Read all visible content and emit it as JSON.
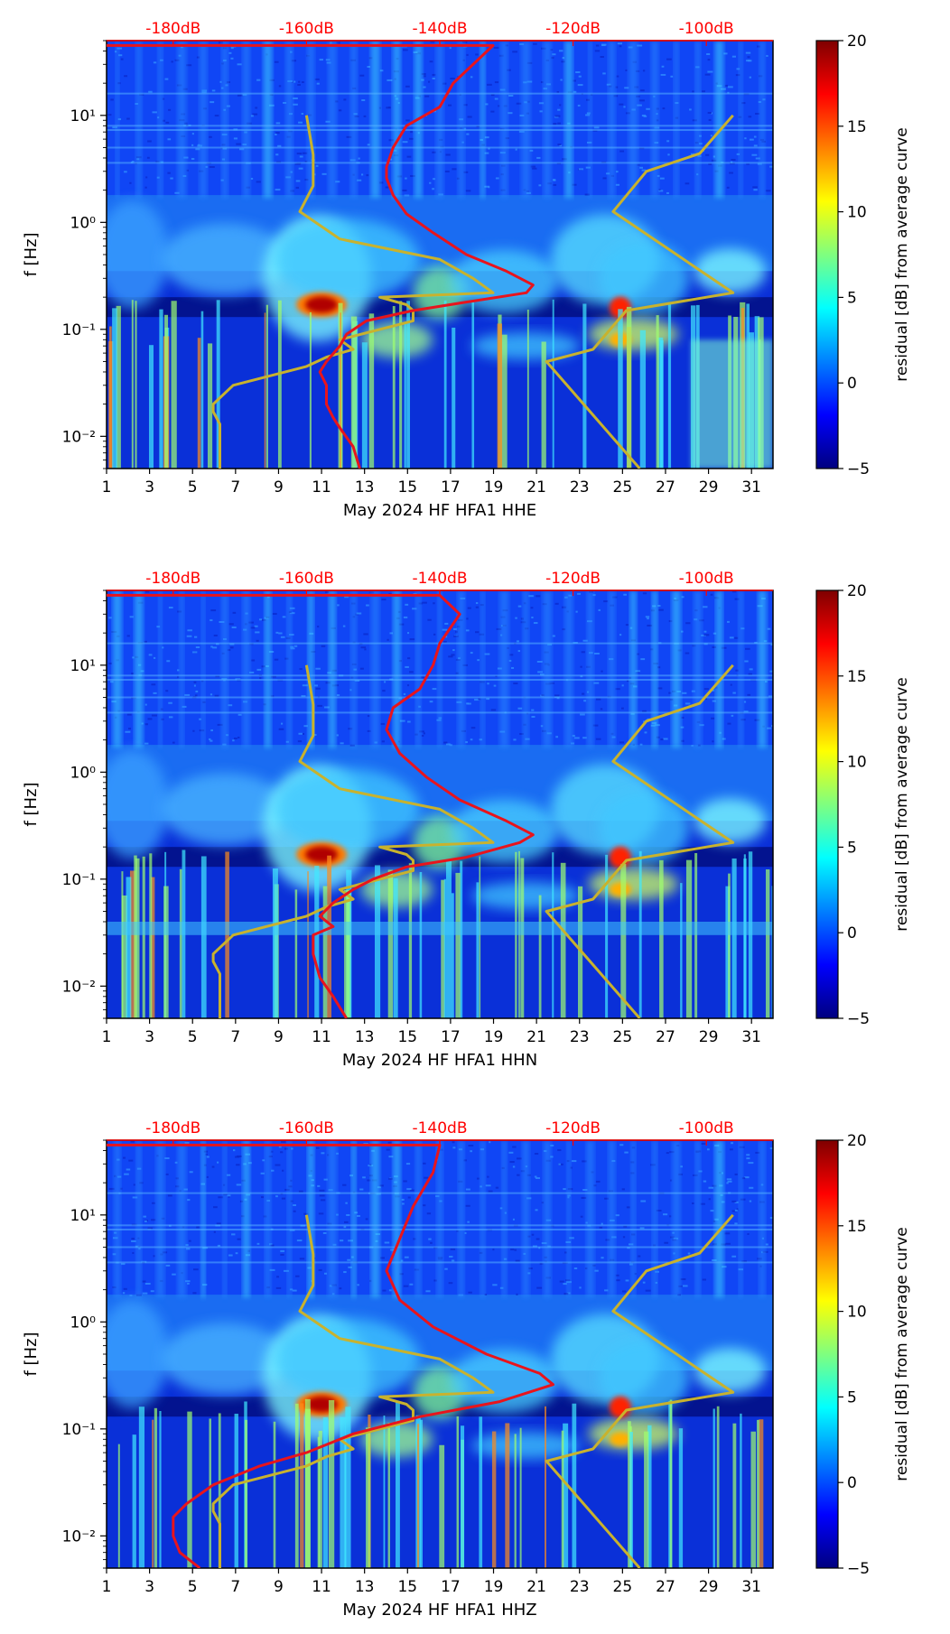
{
  "colors": {
    "colormap": [
      "#00007f",
      "#0000ff",
      "#007fff",
      "#00ffff",
      "#7fff7f",
      "#ffff00",
      "#ff7f00",
      "#ff0000",
      "#7f0000"
    ],
    "noise_model": "#c8b22e",
    "psd_curve": "#e8141c",
    "top_axis": "#ff0000",
    "axis": "#000000"
  },
  "colorbar": {
    "label": "residual [dB] from average curve",
    "ticks": [
      "20",
      "15",
      "10",
      "5",
      "0",
      "−5"
    ],
    "range": [
      -5,
      20
    ]
  },
  "chart_data": [
    {
      "type": "heatmap",
      "xlabel": "May 2024 HF HFA1  HHE",
      "ylabel": "f [Hz]",
      "x_ticks": [
        "1",
        "3",
        "5",
        "7",
        "9",
        "11",
        "13",
        "15",
        "17",
        "19",
        "21",
        "23",
        "25",
        "27",
        "29",
        "31"
      ],
      "x_range": [
        1,
        32
      ],
      "y_ticks": [
        "10¹",
        "10⁰",
        "10⁻¹",
        "10⁻²"
      ],
      "y_range": [
        0.005,
        50
      ],
      "y_scale": "log",
      "top_axis_ticks": [
        "-180dB",
        "-160dB",
        "-140dB",
        "-120dB",
        "-100dB"
      ],
      "top_axis_range": [
        -190,
        -90
      ],
      "series": [
        {
          "values": [
            [
              -173,
              0.005
            ],
            [
              -173,
              0.013
            ],
            [
              -174,
              0.017
            ],
            [
              -174,
              0.02
            ],
            [
              -171,
              0.03
            ],
            [
              -160,
              0.045
            ],
            [
              -157,
              0.055
            ],
            [
              -153,
              0.065
            ],
            [
              -155,
              0.08
            ],
            [
              -144,
              0.12
            ],
            [
              -144,
              0.15
            ],
            [
              -145,
              0.17
            ],
            [
              -149,
              0.2
            ],
            [
              -132,
              0.22
            ],
            [
              -135,
              0.3
            ],
            [
              -140,
              0.45
            ],
            [
              -155,
              0.7
            ],
            [
              -161,
              1.26
            ],
            [
              -159,
              2.2
            ],
            [
              -159,
              4.3
            ],
            [
              -160,
              10
            ]
          ]
        },
        {
          "values": [
            [
              -110,
              0.005
            ],
            [
              -124,
              0.05
            ],
            [
              -117,
              0.065
            ],
            [
              -112,
              0.15
            ],
            [
              -96,
              0.22
            ],
            [
              -114,
              1.26
            ],
            [
              -109,
              3.0
            ],
            [
              -101,
              4.4
            ],
            [
              -96,
              10
            ]
          ]
        },
        {
          "values": [
            [
              -152,
              0.005
            ],
            [
              -153,
              0.008
            ],
            [
              -155,
              0.012
            ],
            [
              -156,
              0.015
            ],
            [
              -157,
              0.02
            ],
            [
              -157,
              0.03
            ],
            [
              -158,
              0.04
            ],
            [
              -157,
              0.05
            ],
            [
              -155,
              0.07
            ],
            [
              -154,
              0.09
            ],
            [
              -151,
              0.12
            ],
            [
              -144,
              0.15
            ],
            [
              -136,
              0.18
            ],
            [
              -127,
              0.22
            ],
            [
              -126,
              0.26
            ],
            [
              -130,
              0.35
            ],
            [
              -136,
              0.5
            ],
            [
              -141,
              0.8
            ],
            [
              -145,
              1.2
            ],
            [
              -147,
              1.8
            ],
            [
              -148,
              2.6
            ],
            [
              -148,
              3.3
            ],
            [
              -147,
              5
            ],
            [
              -145,
              8
            ],
            [
              -140,
              12
            ],
            [
              -138,
              20
            ],
            [
              -132,
              45
            ],
            [
              -190,
              45
            ]
          ]
        }
      ]
    },
    {
      "type": "heatmap",
      "xlabel": "May 2024 HF HFA1  HHN",
      "ylabel": "f [Hz]",
      "x_ticks": [
        "1",
        "3",
        "5",
        "7",
        "9",
        "11",
        "13",
        "15",
        "17",
        "19",
        "21",
        "23",
        "25",
        "27",
        "29",
        "31"
      ],
      "x_range": [
        1,
        32
      ],
      "y_ticks": [
        "10¹",
        "10⁰",
        "10⁻¹",
        "10⁻²"
      ],
      "y_range": [
        0.005,
        50
      ],
      "y_scale": "log",
      "top_axis_ticks": [
        "-180dB",
        "-160dB",
        "-140dB",
        "-120dB",
        "-100dB"
      ],
      "top_axis_range": [
        -190,
        -90
      ],
      "series": [
        {
          "values": [
            [
              -173,
              0.005
            ],
            [
              -173,
              0.013
            ],
            [
              -174,
              0.017
            ],
            [
              -174,
              0.02
            ],
            [
              -171,
              0.03
            ],
            [
              -160,
              0.045
            ],
            [
              -157,
              0.055
            ],
            [
              -153,
              0.065
            ],
            [
              -155,
              0.08
            ],
            [
              -144,
              0.12
            ],
            [
              -144,
              0.15
            ],
            [
              -145,
              0.17
            ],
            [
              -149,
              0.2
            ],
            [
              -132,
              0.22
            ],
            [
              -135,
              0.3
            ],
            [
              -140,
              0.45
            ],
            [
              -155,
              0.7
            ],
            [
              -161,
              1.26
            ],
            [
              -159,
              2.2
            ],
            [
              -159,
              4.3
            ],
            [
              -160,
              10
            ]
          ]
        },
        {
          "values": [
            [
              -110,
              0.005
            ],
            [
              -124,
              0.05
            ],
            [
              -117,
              0.065
            ],
            [
              -112,
              0.15
            ],
            [
              -96,
              0.22
            ],
            [
              -114,
              1.26
            ],
            [
              -109,
              3.0
            ],
            [
              -101,
              4.4
            ],
            [
              -96,
              10
            ]
          ]
        },
        {
          "values": [
            [
              -154,
              0.005
            ],
            [
              -156,
              0.008
            ],
            [
              -158,
              0.012
            ],
            [
              -159,
              0.02
            ],
            [
              -159,
              0.03
            ],
            [
              -156,
              0.036
            ],
            [
              -158,
              0.045
            ],
            [
              -156,
              0.06
            ],
            [
              -153,
              0.08
            ],
            [
              -150,
              0.1
            ],
            [
              -145,
              0.13
            ],
            [
              -136,
              0.16
            ],
            [
              -128,
              0.22
            ],
            [
              -126,
              0.26
            ],
            [
              -130,
              0.35
            ],
            [
              -137,
              0.55
            ],
            [
              -142,
              0.9
            ],
            [
              -146,
              1.5
            ],
            [
              -148,
              2.5
            ],
            [
              -147,
              4
            ],
            [
              -143,
              6
            ],
            [
              -141,
              10
            ],
            [
              -140,
              16
            ],
            [
              -137,
              30
            ],
            [
              -140,
              45
            ],
            [
              -190,
              45
            ]
          ]
        }
      ]
    },
    {
      "type": "heatmap",
      "xlabel": "May 2024 HF HFA1  HHZ",
      "ylabel": "f [Hz]",
      "x_ticks": [
        "1",
        "3",
        "5",
        "7",
        "9",
        "11",
        "13",
        "15",
        "17",
        "19",
        "21",
        "23",
        "25",
        "27",
        "29",
        "31"
      ],
      "x_range": [
        1,
        32
      ],
      "y_ticks": [
        "10¹",
        "10⁰",
        "10⁻¹",
        "10⁻²"
      ],
      "y_range": [
        0.005,
        50
      ],
      "y_scale": "log",
      "top_axis_ticks": [
        "-180dB",
        "-160dB",
        "-140dB",
        "-120dB",
        "-100dB"
      ],
      "top_axis_range": [
        -190,
        -90
      ],
      "series": [
        {
          "values": [
            [
              -173,
              0.005
            ],
            [
              -173,
              0.013
            ],
            [
              -174,
              0.017
            ],
            [
              -174,
              0.02
            ],
            [
              -171,
              0.03
            ],
            [
              -160,
              0.045
            ],
            [
              -157,
              0.055
            ],
            [
              -153,
              0.065
            ],
            [
              -155,
              0.08
            ],
            [
              -144,
              0.12
            ],
            [
              -144,
              0.15
            ],
            [
              -145,
              0.17
            ],
            [
              -149,
              0.2
            ],
            [
              -132,
              0.22
            ],
            [
              -135,
              0.3
            ],
            [
              -140,
              0.45
            ],
            [
              -155,
              0.7
            ],
            [
              -161,
              1.26
            ],
            [
              -159,
              2.2
            ],
            [
              -159,
              4.3
            ],
            [
              -160,
              10
            ]
          ]
        },
        {
          "values": [
            [
              -110,
              0.005
            ],
            [
              -124,
              0.05
            ],
            [
              -117,
              0.065
            ],
            [
              -112,
              0.15
            ],
            [
              -96,
              0.22
            ],
            [
              -114,
              1.26
            ],
            [
              -109,
              3.0
            ],
            [
              -101,
              4.4
            ],
            [
              -96,
              10
            ]
          ]
        },
        {
          "values": [
            [
              -176,
              0.005
            ],
            [
              -179,
              0.007
            ],
            [
              -180,
              0.01
            ],
            [
              -180,
              0.015
            ],
            [
              -178,
              0.02
            ],
            [
              -174,
              0.03
            ],
            [
              -167,
              0.045
            ],
            [
              -160,
              0.06
            ],
            [
              -153,
              0.09
            ],
            [
              -143,
              0.13
            ],
            [
              -131,
              0.18
            ],
            [
              -123,
              0.26
            ],
            [
              -125,
              0.33
            ],
            [
              -133,
              0.5
            ],
            [
              -141,
              0.9
            ],
            [
              -146,
              1.6
            ],
            [
              -148,
              3
            ],
            [
              -146,
              6
            ],
            [
              -144,
              12
            ],
            [
              -141,
              25
            ],
            [
              -140,
              45
            ],
            [
              -190,
              45
            ]
          ]
        }
      ]
    }
  ]
}
